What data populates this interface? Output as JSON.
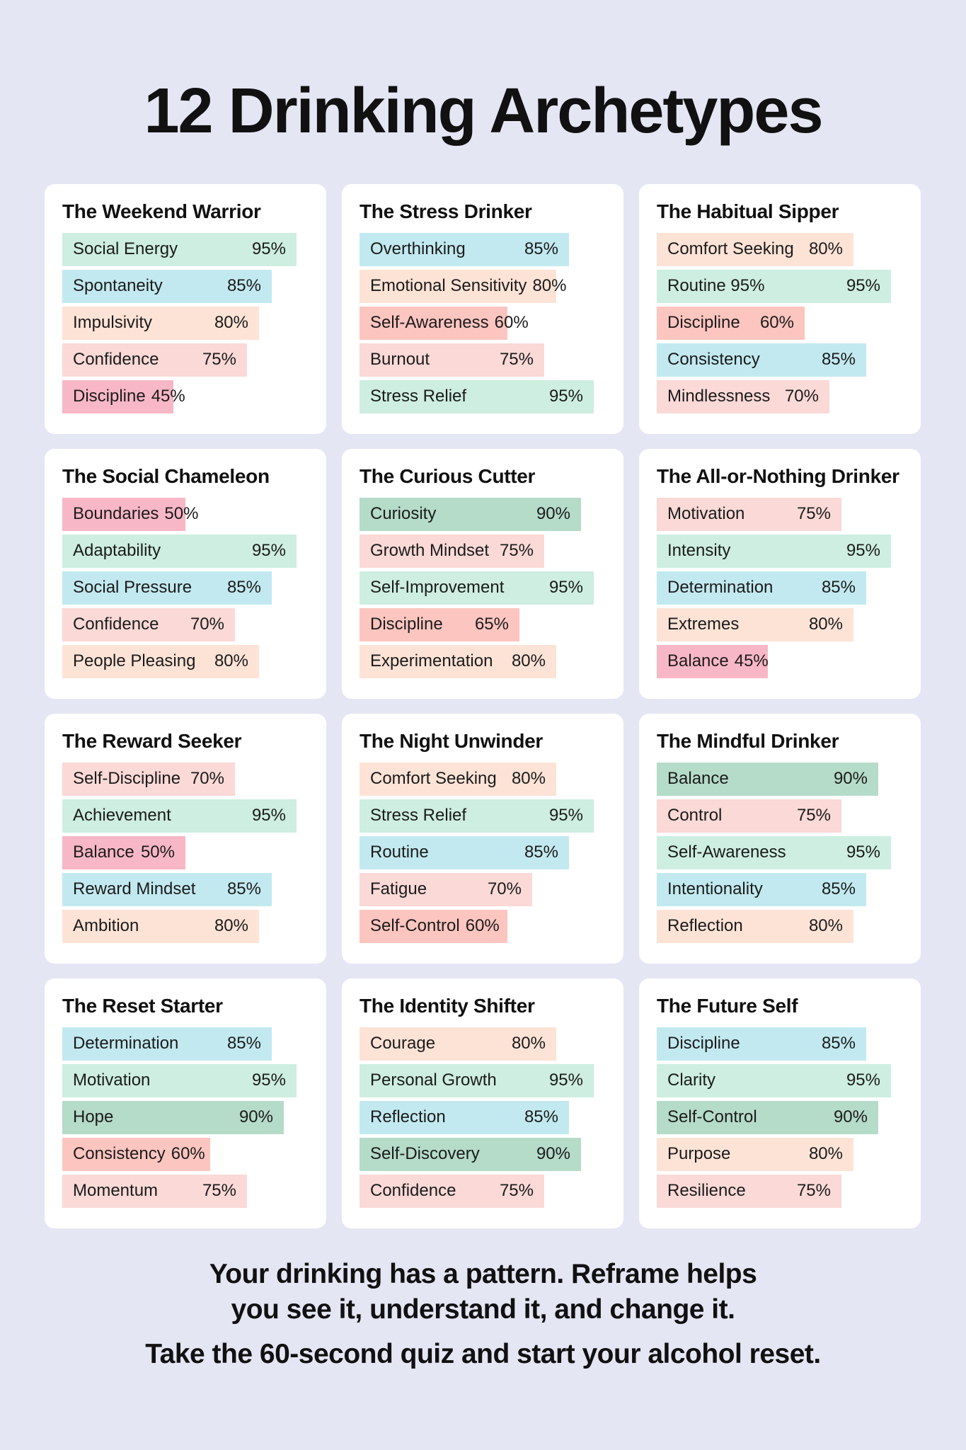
{
  "title": "12 Drinking Archetypes",
  "colors": {
    "background": "#e4e6f4",
    "card": "#ffffff",
    "mint": "#cdeee0",
    "sky": "#c2e9f0",
    "peach": "#fde3d6",
    "blush": "#fad9d7",
    "pink": "#f8b7c6",
    "salmon": "#fdc5bf",
    "sage": "#b5dbc9"
  },
  "archetypes": [
    {
      "name": "The Weekend Warrior",
      "traits": [
        {
          "label": "Social Energy",
          "value_text": "95%",
          "value": 95,
          "color": "mint"
        },
        {
          "label": "Spontaneity",
          "value_text": "85%",
          "value": 85,
          "color": "sky"
        },
        {
          "label": "Impulsivity",
          "value_text": "80%",
          "value": 80,
          "color": "peach"
        },
        {
          "label": "Confidence",
          "value_text": "75%",
          "value": 75,
          "color": "blush"
        },
        {
          "label": "Discipline",
          "value_text": "45%",
          "value": 45,
          "color": "pink"
        }
      ]
    },
    {
      "name": "The Stress Drinker",
      "traits": [
        {
          "label": "Overthinking",
          "value_text": "85%",
          "value": 85,
          "color": "sky"
        },
        {
          "label": "Emotional Sensitivity",
          "value_text": "80%",
          "value": 80,
          "color": "peach"
        },
        {
          "label": "Self-Awareness",
          "value_text": "60%",
          "value": 60,
          "color": "salmon"
        },
        {
          "label": "Burnout",
          "value_text": "75%",
          "value": 75,
          "color": "blush"
        },
        {
          "label": "Stress Relief",
          "value_text": "95%",
          "value": 95,
          "color": "mint"
        }
      ]
    },
    {
      "name": "The Habitual Sipper",
      "traits": [
        {
          "label": "Comfort Seeking",
          "value_text": "80%",
          "value": 80,
          "color": "peach"
        },
        {
          "label": "Routine 95%",
          "value_text": "95%",
          "value": 95,
          "color": "mint"
        },
        {
          "label": "Discipline",
          "value_text": "60%",
          "value": 60,
          "color": "salmon"
        },
        {
          "label": "Consistency",
          "value_text": "85%",
          "value": 85,
          "color": "sky"
        },
        {
          "label": "Mindlessness",
          "value_text": "70%",
          "value": 70,
          "color": "blush"
        }
      ]
    },
    {
      "name": "The Social Chameleon",
      "traits": [
        {
          "label": "Boundaries",
          "value_text": "50%",
          "value": 50,
          "color": "pink"
        },
        {
          "label": "Adaptability",
          "value_text": "95%",
          "value": 95,
          "color": "mint"
        },
        {
          "label": "Social Pressure",
          "value_text": "85%",
          "value": 85,
          "color": "sky"
        },
        {
          "label": "Confidence",
          "value_text": "70%",
          "value": 70,
          "color": "blush"
        },
        {
          "label": "People Pleasing",
          "value_text": "80%",
          "value": 80,
          "color": "peach"
        }
      ]
    },
    {
      "name": "The Curious Cutter",
      "traits": [
        {
          "label": "Curiosity",
          "value_text": "90%",
          "value": 90,
          "color": "sage"
        },
        {
          "label": "Growth Mindset",
          "value_text": "75%",
          "value": 75,
          "color": "blush"
        },
        {
          "label": "Self-Improvement",
          "value_text": "95%",
          "value": 95,
          "color": "mint"
        },
        {
          "label": "Discipline",
          "value_text": "65%",
          "value": 65,
          "color": "salmon"
        },
        {
          "label": "Experimentation",
          "value_text": "80%",
          "value": 80,
          "color": "peach"
        }
      ]
    },
    {
      "name": "The All-or-Nothing Drinker",
      "traits": [
        {
          "label": "Motivation",
          "value_text": "75%",
          "value": 75,
          "color": "blush"
        },
        {
          "label": "Intensity",
          "value_text": "95%",
          "value": 95,
          "color": "mint"
        },
        {
          "label": "Determination",
          "value_text": "85%",
          "value": 85,
          "color": "sky"
        },
        {
          "label": "Extremes",
          "value_text": "80%",
          "value": 80,
          "color": "peach"
        },
        {
          "label": "Balance",
          "value_text": "45%",
          "value": 45,
          "color": "pink"
        }
      ]
    },
    {
      "name": "The Reward Seeker",
      "traits": [
        {
          "label": "Self-Discipline",
          "value_text": "70%",
          "value": 70,
          "color": "blush"
        },
        {
          "label": "Achievement",
          "value_text": "95%",
          "value": 95,
          "color": "mint"
        },
        {
          "label": "Balance",
          "value_text": "50%",
          "value": 50,
          "color": "pink"
        },
        {
          "label": "Reward Mindset",
          "value_text": "85%",
          "value": 85,
          "color": "sky"
        },
        {
          "label": "Ambition",
          "value_text": "80%",
          "value": 80,
          "color": "peach"
        }
      ]
    },
    {
      "name": "The Night Unwinder",
      "traits": [
        {
          "label": "Comfort Seeking",
          "value_text": "80%",
          "value": 80,
          "color": "peach"
        },
        {
          "label": "Stress Relief",
          "value_text": "95%",
          "value": 95,
          "color": "mint"
        },
        {
          "label": "Routine",
          "value_text": "85%",
          "value": 85,
          "color": "sky"
        },
        {
          "label": "Fatigue",
          "value_text": "70%",
          "value": 70,
          "color": "blush"
        },
        {
          "label": "Self-Control",
          "value_text": "60%",
          "value": 60,
          "color": "salmon"
        }
      ]
    },
    {
      "name": "The Mindful Drinker",
      "traits": [
        {
          "label": "Balance",
          "value_text": "90%",
          "value": 90,
          "color": "sage"
        },
        {
          "label": "Control",
          "value_text": "75%",
          "value": 75,
          "color": "blush"
        },
        {
          "label": "Self-Awareness",
          "value_text": "95%",
          "value": 95,
          "color": "mint"
        },
        {
          "label": "Intentionality",
          "value_text": "85%",
          "value": 85,
          "color": "sky"
        },
        {
          "label": "Reflection",
          "value_text": "80%",
          "value": 80,
          "color": "peach"
        }
      ]
    },
    {
      "name": "The Reset Starter",
      "traits": [
        {
          "label": "Determination",
          "value_text": "85%",
          "value": 85,
          "color": "sky"
        },
        {
          "label": "Motivation",
          "value_text": "95%",
          "value": 95,
          "color": "mint"
        },
        {
          "label": "Hope",
          "value_text": "90%",
          "value": 90,
          "color": "sage"
        },
        {
          "label": "Consistency",
          "value_text": "60%",
          "value": 60,
          "color": "salmon"
        },
        {
          "label": "Momentum",
          "value_text": "75%",
          "value": 75,
          "color": "blush"
        }
      ]
    },
    {
      "name": "The Identity Shifter",
      "traits": [
        {
          "label": "Courage",
          "value_text": "80%",
          "value": 80,
          "color": "peach"
        },
        {
          "label": "Personal Growth",
          "value_text": "95%",
          "value": 95,
          "color": "mint"
        },
        {
          "label": "Reflection",
          "value_text": "85%",
          "value": 85,
          "color": "sky"
        },
        {
          "label": "Self-Discovery",
          "value_text": "90%",
          "value": 90,
          "color": "sage"
        },
        {
          "label": "Confidence",
          "value_text": "75%",
          "value": 75,
          "color": "blush"
        }
      ]
    },
    {
      "name": "The Future Self",
      "traits": [
        {
          "label": "Discipline",
          "value_text": "85%",
          "value": 85,
          "color": "sky"
        },
        {
          "label": "Clarity",
          "value_text": "95%",
          "value": 95,
          "color": "mint"
        },
        {
          "label": "Self-Control",
          "value_text": "90%",
          "value": 90,
          "color": "sage"
        },
        {
          "label": "Purpose",
          "value_text": "80%",
          "value": 80,
          "color": "peach"
        },
        {
          "label": "Resilience",
          "value_text": "75%",
          "value": 75,
          "color": "blush"
        }
      ]
    }
  ],
  "footer": {
    "tagline_line1": "Your drinking has a pattern. Reframe helps",
    "tagline_line2": "you see it, understand it, and change it.",
    "cta": "Take the 60-second quiz and start your alcohol reset."
  }
}
